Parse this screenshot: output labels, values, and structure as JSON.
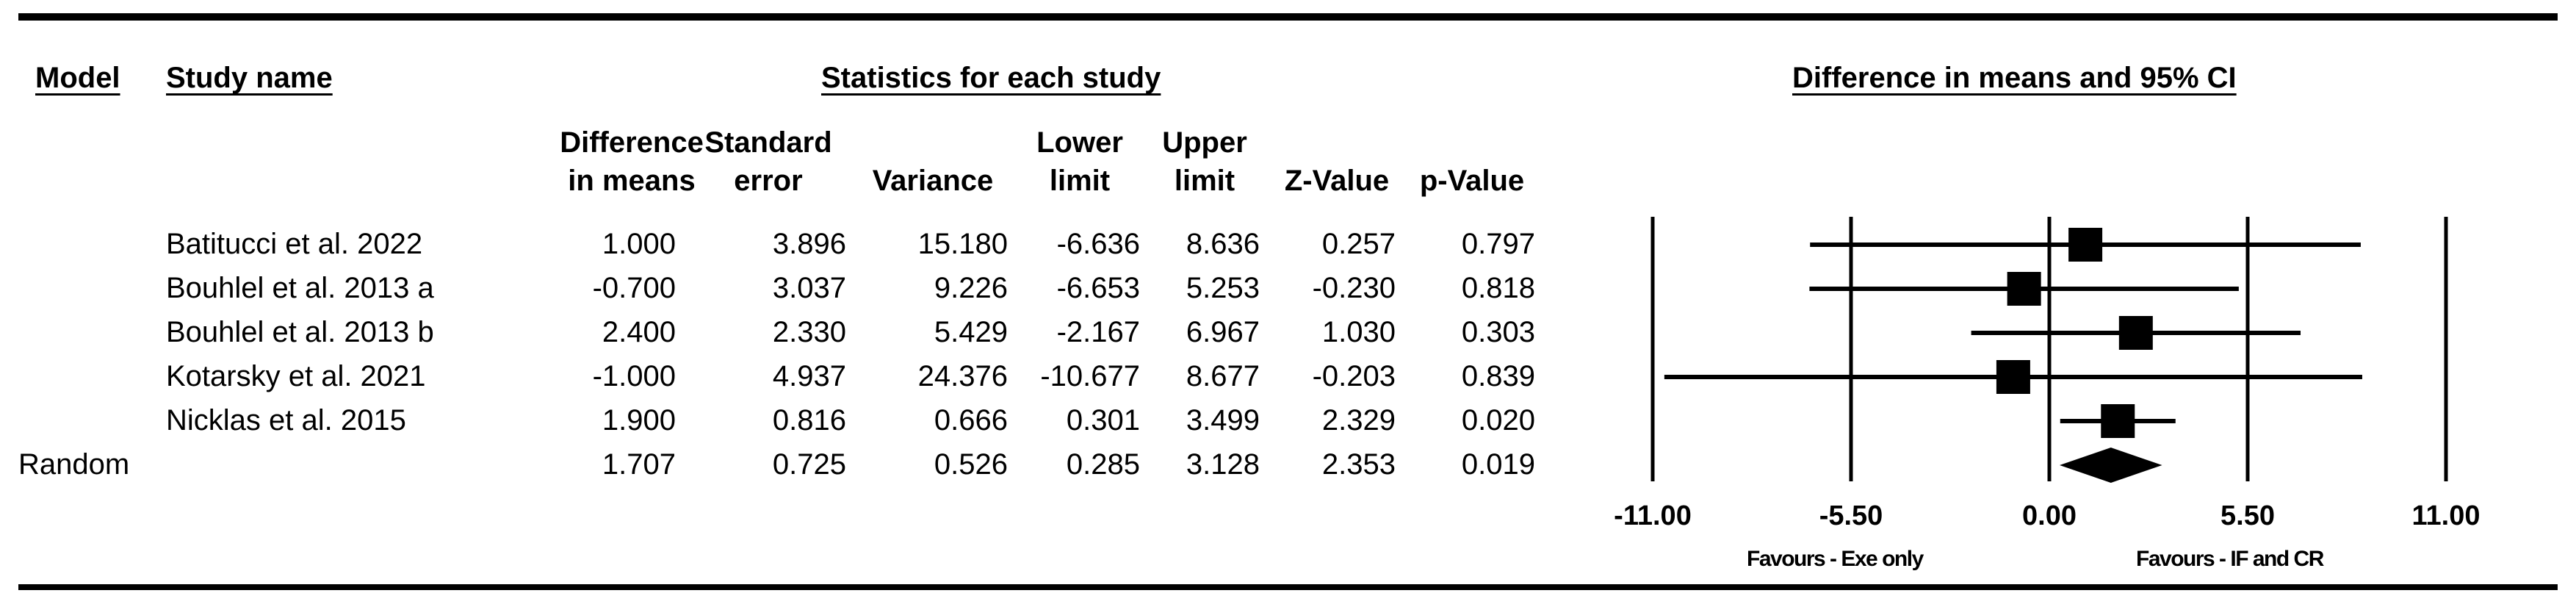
{
  "headers": {
    "model": "Model",
    "study_name": "Study name",
    "statistics": "Statistics for each study",
    "plot_title": "Difference in means and 95% CI"
  },
  "columns": [
    {
      "line1": "Difference",
      "line2": "in means"
    },
    {
      "line1": "Standard",
      "line2": "error"
    },
    {
      "line1": "",
      "line2": "Variance"
    },
    {
      "line1": "Lower",
      "line2": "limit"
    },
    {
      "line1": "Upper",
      "line2": "limit"
    },
    {
      "line1": "",
      "line2": "Z-Value"
    },
    {
      "line1": "",
      "line2": "p-Value"
    }
  ],
  "studies": [
    {
      "name": "Batitucci et al. 2022",
      "cells": [
        "1.000",
        "3.896",
        "15.180",
        "-6.636",
        "8.636",
        "0.257",
        "0.797"
      ]
    },
    {
      "name": "Bouhlel et al. 2013 a",
      "cells": [
        "-0.700",
        "3.037",
        "9.226",
        "-6.653",
        "5.253",
        "-0.230",
        "0.818"
      ]
    },
    {
      "name": "Bouhlel et al. 2013 b",
      "cells": [
        "2.400",
        "2.330",
        "5.429",
        "-2.167",
        "6.967",
        "1.030",
        "0.303"
      ]
    },
    {
      "name": "Kotarsky et al. 2021",
      "cells": [
        "-1.000",
        "4.937",
        "24.376",
        "-10.677",
        "8.677",
        "-0.203",
        "0.839"
      ]
    },
    {
      "name": "Nicklas et al. 2015",
      "cells": [
        "1.900",
        "0.816",
        "0.666",
        "0.301",
        "3.499",
        "2.329",
        "0.020"
      ]
    }
  ],
  "summary": {
    "model": "Random",
    "cells": [
      "1.707",
      "0.725",
      "0.526",
      "0.285",
      "3.128",
      "2.353",
      "0.019"
    ]
  },
  "favours": {
    "left": "Favours - Exe only",
    "right": "Favours - IF and CR"
  },
  "chart_data": {
    "type": "forest",
    "title": "Difference in means and 95% CI",
    "xlim": [
      -11.0,
      11.0
    ],
    "x_ticks": [
      "-11.00",
      "-5.50",
      "0.00",
      "5.50",
      "11.00"
    ],
    "x_tick_values": [
      -11.0,
      -5.5,
      0.0,
      5.5,
      11.0
    ],
    "studies": [
      {
        "name": "Batitucci et al. 2022",
        "estimate": 1.0,
        "lower": -6.636,
        "upper": 8.636,
        "weight": 3.896
      },
      {
        "name": "Bouhlel et al. 2013 a",
        "estimate": -0.7,
        "lower": -6.653,
        "upper": 5.253,
        "weight": 3.037
      },
      {
        "name": "Bouhlel et al. 2013 b",
        "estimate": 2.4,
        "lower": -2.167,
        "upper": 6.967,
        "weight": 2.33
      },
      {
        "name": "Kotarsky et al. 2021",
        "estimate": -1.0,
        "lower": -10.677,
        "upper": 8.677,
        "weight": 4.937
      },
      {
        "name": "Nicklas et al. 2015",
        "estimate": 1.9,
        "lower": 0.301,
        "upper": 3.499,
        "weight": 0.816
      }
    ],
    "pooled": {
      "name": "Random",
      "estimate": 1.707,
      "lower": 0.285,
      "upper": 3.128
    },
    "grid": false
  }
}
